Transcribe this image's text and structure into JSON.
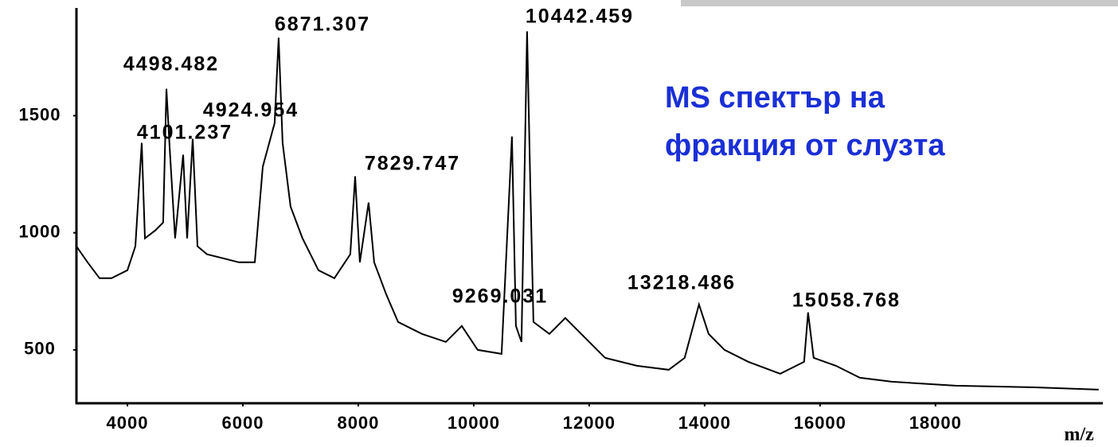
{
  "chart_data": {
    "type": "line",
    "title": [
      "MS спектър на",
      "фракция от слузта"
    ],
    "x_label": "m/z",
    "color": "#000000",
    "x": [
      3117,
      3310,
      3517,
      3724,
      4000,
      4138,
      4248,
      4303,
      4483,
      4620,
      4676,
      4731,
      4827,
      4965,
      5034,
      5131,
      5214,
      5379,
      5655,
      5931,
      6207,
      6345,
      6551,
      6620,
      6689,
      6827,
      7034,
      7310,
      7586,
      7862,
      7945,
      8027,
      8179,
      8276,
      8482,
      8689,
      9103,
      9517,
      9793,
      10069,
      10483,
      10662,
      10731,
      10828,
      10924,
      10979,
      11034,
      11310,
      11586,
      11862,
      12276,
      12827,
      13379,
      13655,
      13903,
      14069,
      14345,
      14758,
      15310,
      15724,
      15793,
      15889,
      16276,
      16689,
      17241,
      18344,
      19724,
      20827
    ],
    "values": [
      942,
      874,
      806,
      806,
      840,
      942,
      1384,
      976,
      1010,
      1044,
      1615,
      1367,
      976,
      1333,
      976,
      1401,
      942,
      908,
      891,
      874,
      874,
      1282,
      1469,
      1833,
      1384,
      1112,
      976,
      840,
      806,
      908,
      1241,
      874,
      1129,
      874,
      738,
      619,
      568,
      534,
      602,
      500,
      483,
      1411,
      602,
      534,
      1860,
      1214,
      619,
      568,
      636,
      568,
      466,
      432,
      415,
      466,
      694,
      568,
      500,
      449,
      398,
      449,
      660,
      466,
      432,
      381,
      364,
      347,
      340,
      330
    ],
    "xlim": [
      3117,
      20900
    ],
    "ylim": [
      272,
      1960
    ],
    "xticks": [
      4000,
      6000,
      8000,
      10000,
      12000,
      14000,
      16000,
      18000
    ],
    "yticks": [
      500,
      1000,
      1500
    ],
    "annotations": [
      "4498.482",
      "6871.307",
      "4924.954",
      "4101.237",
      "7829.747",
      "10442.459",
      "9269.031",
      "13218.486",
      "15058.768"
    ]
  }
}
